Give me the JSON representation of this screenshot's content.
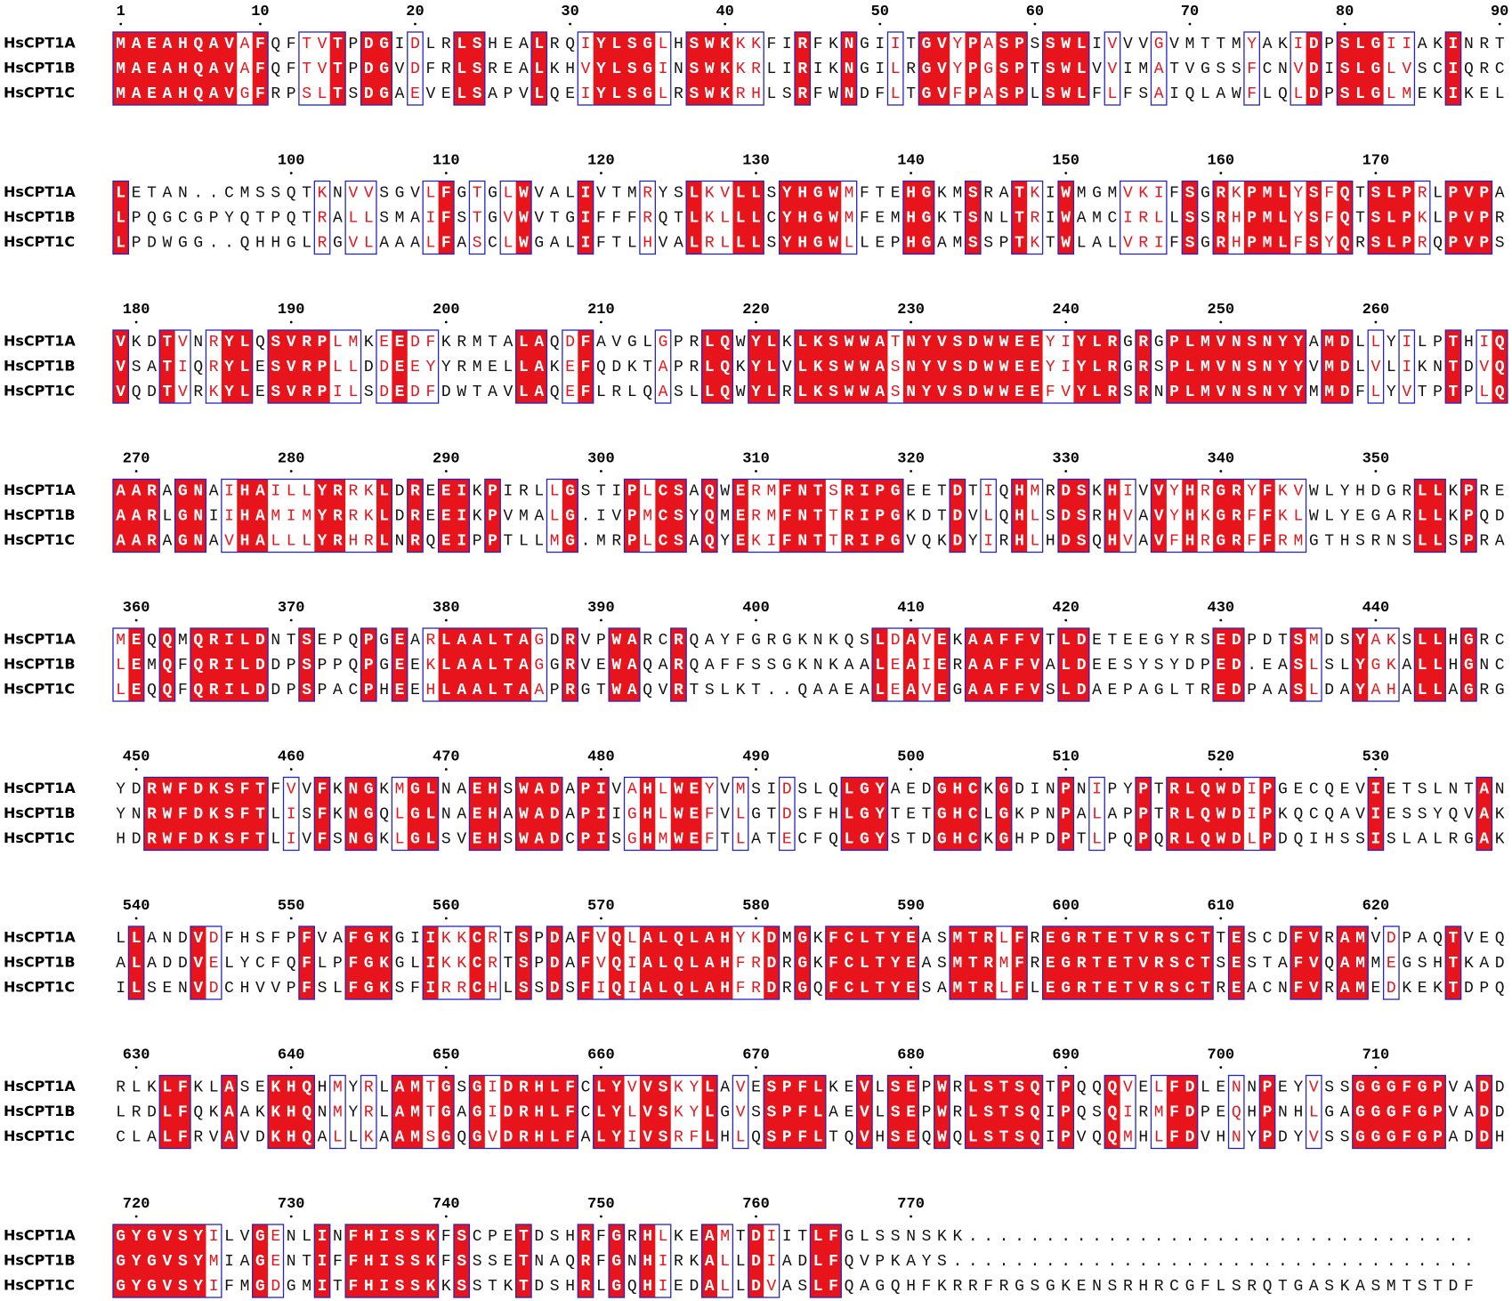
{
  "names": [
    "HsCPT1A",
    "HsCPT1B",
    "HsCPT1C"
  ],
  "blocks": [
    {
      "ruler": [
        1,
        10,
        20,
        30,
        40,
        50,
        60,
        70,
        80,
        90
      ],
      "seqs": [
        "MAEAHQAVAFQFTVTPDGIDLRLSHEALRQIYLSGLHSWKKKFIRFKNGIITGVYPASPSSWLIVVVGVMTTMYAKIDPSLGIIAKINRT",
        "MAEAHQAVAFQFTVTPDGVDFRLSREALKHVYLSGINSWKKRLIRIKNGILRGVYPGSPTSWLVVIMATVGSSFCNVDISLGLVSCIQRC",
        "MAEAHQAVGFRPSLTSDGAEVELSAPVLQEIYLSGLRSWKRHLSRFWNDFLTGVFPASPLSWLFLFSAIQLAWFLQLDPSLGLMEKIKEL"
      ]
    },
    {
      "ruler": [
        100,
        110,
        120,
        130,
        140,
        150,
        160,
        170
      ],
      "seqs": [
        "LETAN..CMSSQTKNVVSGVLFGTGLWVALIVTMRYSLKVLLSYHGWMFTEHGKMSRATKIWMGMVKIFSGRKPMLYSFQTSLPRLPVPA",
        "LPQGCGPYQTPQTRALLSMAIFSTGVWVTGIFFFRQTLKLLLCYHGWMFEMHGKTSNLTRIWAMCIRLLSSRHPMLYSFQTSLPKLPVPR",
        "LPDWGG..QHHGLRGVLAAALFASCLWGALIFTLHVALRLLLSYHGWLLEPHGAMSSPTKTWLALVRIFSGRHPMLFSYQRSLPRQPVPS"
      ]
    },
    {
      "ruler": [
        180,
        190,
        200,
        210,
        220,
        230,
        240,
        250,
        260
      ],
      "seqs": [
        "VKDTVNRYLQSVRPLMKEEDFKRMTALAQDFAVGLGPRLQWYLKLKSWWATNYVSDWWEEYIYLRGRGPLMVNSNYYAMDLLYILPTHIQ",
        "VSATIQRYLESVRPLLDDEEYYRMELLAKEFQDKTAPRLQKYLVLKSWWASNYVSDWWEEYIYLRGRSPLMVNSNYYVMDLVLIKNTDVQ",
        "VQDTVRKYLESVRPILSDEDFDWTAVLAQEFLRLQASLLQWYLRLKSWWASNYVSDWWEEFVYLRSRNPLMVNSNYYMMDFLYVTPTPLQ"
      ]
    },
    {
      "ruler": [
        270,
        280,
        290,
        300,
        310,
        320,
        330,
        340,
        350
      ],
      "seqs": [
        "AARAGNAIHAILLYRRKLDREEIKPIRLLGSTIPLCSAQWERMFNTSRIPGEETDTIQHMRDSKHIVVYHRGRYFKVWLYHDGRLLKPRE",
        "AARLGNIIHAMIMYRRKLDREEIKPVMALG.IVPMCSYQMERMFNTTRIPGKDTDVLQHLSDSRHVAVYHKGRFFKLWLYEGARLLKPQD",
        "AARAGNAVHALLLYRHRLNRQEIPPTLLMG.MRPLCSAQYEKIFNTTRIPGVQKDYIRHLHDSQHVAVFHRGRFFRMGTHSRNSLLSPRA"
      ]
    },
    {
      "ruler": [
        360,
        370,
        380,
        390,
        400,
        410,
        420,
        430,
        440
      ],
      "seqs": [
        "MEQQMQRILDNTSEPQPGEARLAALTAGDRVPWARCRQAYFGRGKNKQSLDAVEKAAFFVTLDETEEGYRSEDPDTSMDSYAKSLLHGRC",
        "LEMQFQRILDDPSPPQPGEEKLAALTAGGRVEWAQARQAFFSSGKNKAALEAIERAAFFVALDEESYSYDPED.EASLSLYGKALLHGNC",
        "LEQQFQRILDDPSPACPHEEHLAALTAAPRGTWAQVRTSLKT..QAAEALEAVEGAAFFVSLDAEPAGLTREDPAASLDAYAHALLAGRG"
      ]
    },
    {
      "ruler": [
        450,
        460,
        470,
        480,
        490,
        500,
        510,
        520,
        530
      ],
      "seqs": [
        "YDRWFDKSFTFVVFKNGKMGLNAEHSWADAPIVAHLWEYVMSIDSLQLGYAEDGHCKGDINPNIPYPTRLQWDIPGECQEVIETSLNTAN",
        "YNRWFDKSFTLISFKNGQLGLNAEHAWADAPIIGHLWEFVLGTDSFHLGYTETGHCLGKPNPALAPPTRLQWDIPKQCQAVIESSYQVAK",
        "HDRWFDKSFTLIVFSNGKLGLSVEHSWADCPISGHMWEFTLATECFQLGYSTDGHCKGHPDPTLPQPQRLQWDLPDQIHSSISLALRGAK"
      ]
    },
    {
      "ruler": [
        540,
        550,
        560,
        570,
        580,
        590,
        600,
        610,
        620
      ],
      "seqs": [
        "LLANDVDFHSFPFVAFGKGIIKKCRTSPDAFVQLALQLAHYKDMGKFCLTYEASMTRLFREGRTETVRSCTTESCDFVRAMVDPAQTVEQ",
        "ALADDVELYCFQFLPFGKGLIKKCRTSPDAFVQIALQLAHFRDRGKFCLTYEASMTRMFREGRTETVRSCTSESTAFVQAMMEGSHTKAD",
        "ILSENVDCHVVPFSLFGKSFIRRCHLSSDSFIQIALQLAHFRDRGQFCLTYESAMTRLFLEGRTETVRSCTREACNFVRAMEDKEKTDPQ"
      ]
    },
    {
      "ruler": [
        630,
        640,
        650,
        660,
        670,
        680,
        690,
        700,
        710
      ],
      "seqs": [
        "RLKLFKLASEKHQHMYRLAMTGSGIDRHLFCLYVVSKYLAVESPFLKEVLSEPWRLSTSQTPQQQVELFDLENNPEYVSSGGGFGPVADD",
        "LRDLFQKAAKKHQNMYRLAMTGAGIDRHLFCLYLVSKYLGVSSPFLAEVLSEPWRLSTSQIPQSQIRMFDPEQHPNHLGAGGGFGPVADD",
        "CLALFRVAVDKHQALLKAAMSGQGVDRHLFALYIVSRFLHLQSPFLTQVHSEQWQLSTSQIPVQQMHLFDVHNYPDYVSSGGGFGPADDH"
      ]
    },
    {
      "ruler": [
        720,
        730,
        740,
        750,
        760,
        770
      ],
      "seqs": [
        "GYGVSYILVGENLINFHISSKFSCPETDSHRFGRHLKEAMTDIITLFGLSSNSKK.................................",
        "GYGVSYMIAGENTIFFHISSKFSSSETNAQRFGNHIRKALLDIADLFQVPKAYS..................................",
        "GYGVSYIFMGDGMITFHISSKKSSTKTDSHRLGQHIEDALLDVASLFQAGQHFKRRFRGSGKENSRHRCGFLSRQTGASKASMTSTDF"
      ]
    }
  ]
}
